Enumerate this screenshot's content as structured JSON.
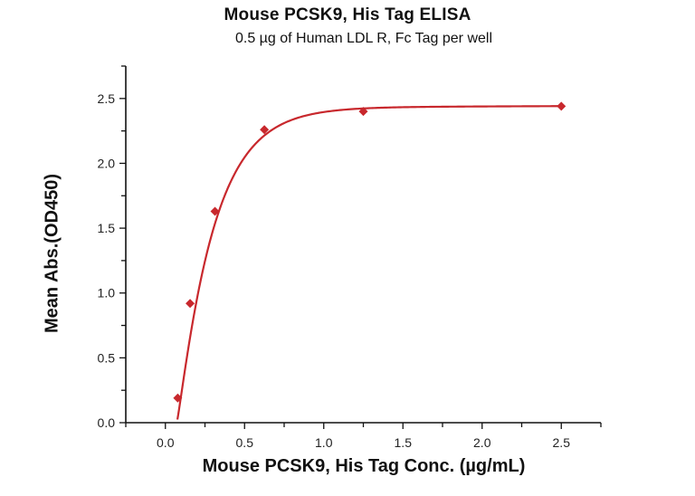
{
  "chart_data": {
    "type": "scatter",
    "title": "Mouse PCSK9, His Tag ELISA",
    "subtitle": "0.5 µg of Human LDL R, Fc Tag per well",
    "xlabel": "Mouse PCSK9, His Tag Conc. (µg/mL)",
    "ylabel": "Mean Abs.(OD450)",
    "xlim": [
      -0.25,
      2.75
    ],
    "ylim": [
      0.0,
      2.75
    ],
    "x_ticks": [
      "0.0",
      "0.5",
      "1.0",
      "1.5",
      "2.0",
      "2.5"
    ],
    "y_ticks": [
      "0.0",
      "0.5",
      "1.0",
      "1.5",
      "2.0",
      "2.5"
    ],
    "grid": false,
    "legend": null,
    "series": [
      {
        "name": "Mouse PCSK9, His Tag",
        "marker": "diamond",
        "color": "#c8282d",
        "fit": "4PL curve",
        "x": [
          0.078,
          0.156,
          0.313,
          0.625,
          1.25,
          2.5
        ],
        "values": [
          0.19,
          0.92,
          1.63,
          2.26,
          2.4,
          2.44
        ]
      }
    ]
  },
  "colors": {
    "series": "#c8282d",
    "axis": "#111111"
  }
}
